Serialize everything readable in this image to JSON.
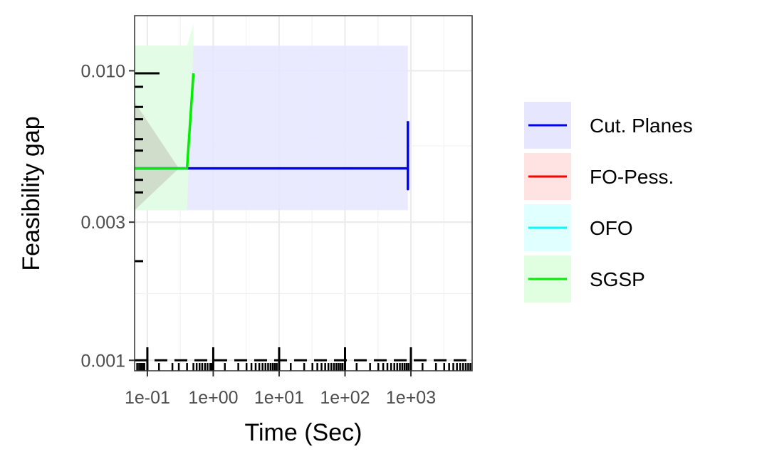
{
  "chart_data": {
    "type": "line",
    "xlabel": "Time (Sec)",
    "ylabel": "Feasibility gap",
    "x_scale": "log10",
    "y_scale": "log10",
    "xlim": [
      0.064,
      8500
    ],
    "ylim": [
      0.00092,
      0.0155
    ],
    "x_ticks": [
      0.1,
      1,
      10,
      100,
      1000
    ],
    "x_tick_labels": [
      "1e-01",
      "1e+00",
      "1e+01",
      "1e+02",
      "1e+03"
    ],
    "y_ticks": [
      0.001,
      0.003,
      0.01
    ],
    "y_tick_labels": [
      "0.001",
      "0.003",
      "0.010"
    ],
    "grid": true,
    "legend_position": "right",
    "reference_line": {
      "y": 0.001,
      "style": "dashed"
    },
    "series": [
      {
        "name": "Cut. Planes",
        "color": "#0000ff",
        "fill": "#e6e6ff",
        "points": [
          [
            0.064,
            0.0046
          ],
          [
            900,
            0.0046
          ],
          [
            900,
            0.0039
          ],
          [
            900,
            0.0067
          ]
        ],
        "band": {
          "x": [
            0.064,
            900
          ],
          "lower": [
            0.0033,
            0.0033
          ],
          "upper": [
            0.0122,
            0.0122
          ]
        }
      },
      {
        "name": "FO-Pess.",
        "color": "#ff0000",
        "fill": "#ffe2e2",
        "points": [],
        "band": null
      },
      {
        "name": "OFO",
        "color": "#00ffff",
        "fill": "#e0ffff",
        "points": [],
        "band": null
      },
      {
        "name": "SGSP",
        "color": "#00ee00",
        "fill": "#e0ffe0",
        "points": [
          [
            0.064,
            0.0046
          ],
          [
            0.4,
            0.0046
          ],
          [
            0.5,
            0.0098
          ]
        ],
        "band": {
          "x": [
            0.064,
            0.4,
            0.5
          ],
          "lower": [
            0.0033,
            0.0033,
            0.0122
          ],
          "upper": [
            0.0122,
            0.0122,
            0.0145
          ]
        }
      }
    ],
    "gray_band": {
      "x": [
        0.064,
        0.3
      ],
      "lower": [
        0.0033,
        0.0046
      ],
      "upper": [
        0.0078,
        0.0046
      ]
    },
    "rug_y": [
      0.0098,
      0.0088,
      0.0075,
      0.0068,
      0.0058,
      0.0053,
      0.0046,
      0.0042,
      0.0038,
      0.0022
    ],
    "rug_x": [
      0.07,
      0.075,
      0.08,
      0.085,
      0.09,
      0.1,
      0.15,
      0.24,
      0.3,
      0.4,
      0.5,
      0.56,
      0.62,
      0.68,
      0.75,
      0.82,
      0.9,
      0.95,
      1.5,
      2.4,
      3.2,
      3.8,
      4.4,
      5,
      5.6,
      6.2,
      6.8,
      7.4,
      8,
      8.6,
      9.2,
      15,
      24,
      32,
      38,
      44,
      50,
      56,
      62,
      68,
      74,
      80,
      86,
      92,
      150,
      240,
      320,
      380,
      440,
      500,
      560,
      620,
      680,
      740,
      800,
      860,
      920,
      1500,
      2400,
      3200,
      3800,
      4400,
      5000,
      5600,
      6200,
      6800,
      7400,
      8000
    ]
  }
}
